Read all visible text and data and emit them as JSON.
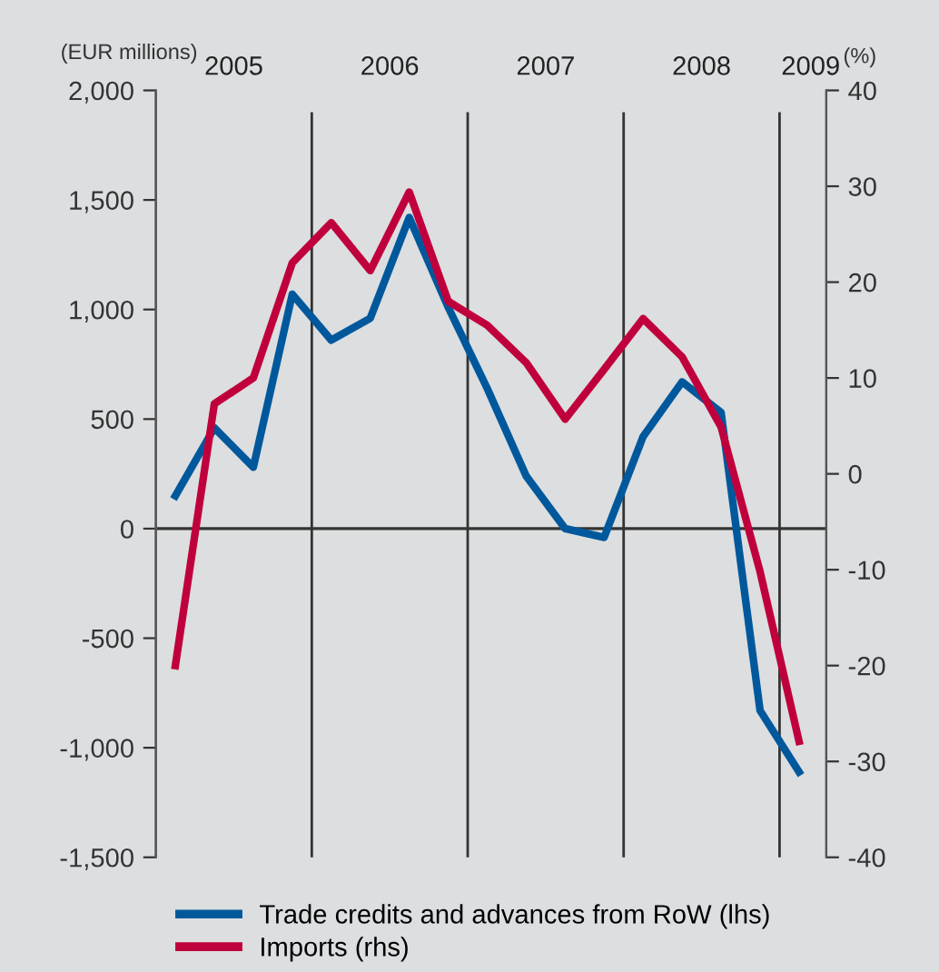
{
  "chart_data": {
    "type": "line",
    "x": [
      2005.125,
      2005.375,
      2005.625,
      2005.875,
      2006.125,
      2006.375,
      2006.625,
      2006.875,
      2007.125,
      2007.375,
      2007.625,
      2007.875,
      2008.125,
      2008.375,
      2008.625,
      2008.875,
      2009.125
    ],
    "series": [
      {
        "name": "Trade credits and advances from RoW (lhs)",
        "color": "#00589c",
        "values": [
          150,
          460,
          280,
          1070,
          860,
          960,
          1420,
          1010,
          640,
          240,
          0,
          -40,
          420,
          670,
          530,
          -830,
          -1110
        ]
      },
      {
        "name": "Imports (rhs)",
        "color": "#c0003c",
        "axis": "y2",
        "values": [
          -20,
          7.3,
          10,
          22,
          26.2,
          21.2,
          29.4,
          18,
          15.5,
          11.6,
          5.7,
          10.9,
          16.2,
          12.2,
          4.9,
          -10.2,
          -27.9
        ]
      }
    ],
    "xlim": [
      2005.0,
      2009.3
    ],
    "xticks": [
      {
        "value": 2005.5,
        "label": "2005"
      },
      {
        "value": 2006.5,
        "label": "2006"
      },
      {
        "value": 2007.5,
        "label": "2007"
      },
      {
        "value": 2008.5,
        "label": "2008"
      },
      {
        "value": 2009.2,
        "label": "2009"
      }
    ],
    "ylim": [
      -1500,
      2000
    ],
    "yticks": [
      {
        "value": 2000,
        "label": "2,000"
      },
      {
        "value": 1500,
        "label": "1,500"
      },
      {
        "value": 1000,
        "label": "1,000"
      },
      500,
      0,
      -500,
      {
        "value": -1000,
        "label": "-1,000"
      },
      {
        "value": -1500,
        "label": "-1,500"
      }
    ],
    "y2lim": [
      -40,
      40
    ],
    "y2ticks": [
      40,
      30,
      20,
      10,
      0,
      -10,
      -20,
      -30,
      -40
    ],
    "ylabel": "(EUR millions)",
    "y2label": "(%)",
    "ref_lines": [
      {
        "axis": "y",
        "value": 0,
        "color": "#333333"
      },
      {
        "axis": "x",
        "value": 2006,
        "color": "#333333"
      },
      {
        "axis": "x",
        "value": 2007,
        "color": "#333333"
      },
      {
        "axis": "x",
        "value": 2008,
        "color": "#333333"
      },
      {
        "axis": "x",
        "value": 2009,
        "color": "#333333"
      }
    ],
    "legend": "bottom",
    "grid": false,
    "marker": "none",
    "line_style": "solid"
  }
}
